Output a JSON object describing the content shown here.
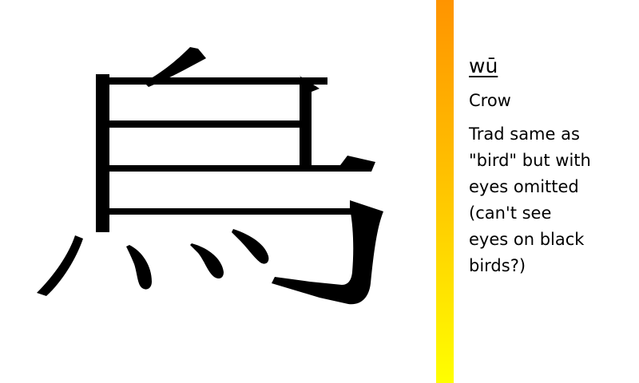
{
  "character": {
    "glyph": "烏",
    "glyph_color": "#000000"
  },
  "divider": {
    "gradient_top": "#ff9400",
    "gradient_bottom": "#ffff00"
  },
  "info": {
    "pinyin": "wū",
    "meaning": "Crow",
    "note_lines": [
      "Trad same as",
      "\"bird\" but with",
      "eyes omitted",
      "(can't see",
      "eyes on black",
      "birds?)"
    ]
  }
}
